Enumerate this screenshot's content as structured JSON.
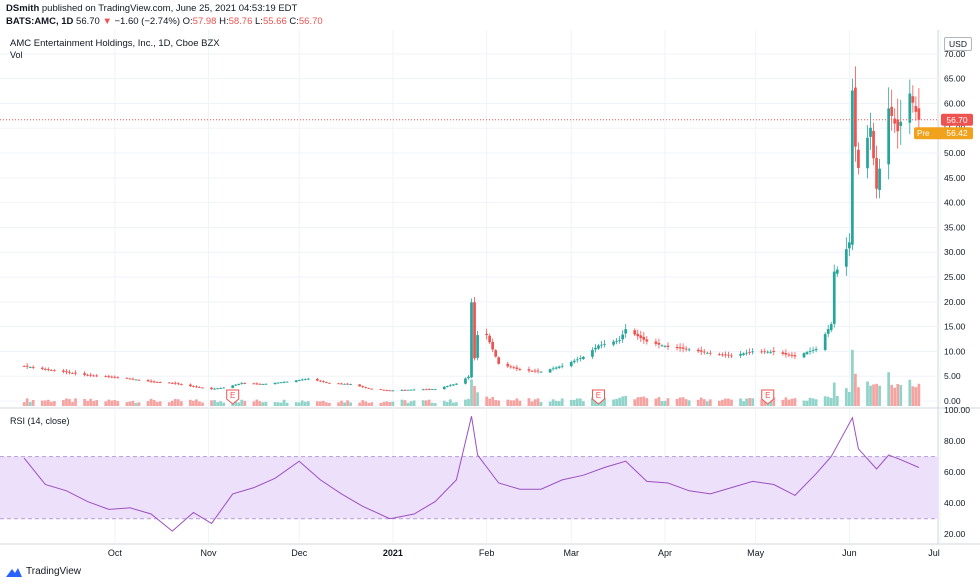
{
  "header": {
    "publisher": "DSmith",
    "published_text": "published on TradingView.com, June 25, 2021 04:53:19 EDT",
    "symbol": "BATS:AMC, 1D",
    "last": "56.70",
    "change": "−1.60 (−2.74%)",
    "o_label": "O:",
    "o": "57.98",
    "h_label": "H:",
    "h": "58.76",
    "l_label": "L:",
    "l": "55.66",
    "c_label": "C:",
    "c": "56.70"
  },
  "legend": {
    "title": "AMC Entertainment Holdings, Inc., 1D, Cboe BZX",
    "vol": "Vol",
    "rsi": "RSI (14, close)"
  },
  "currency": "USD",
  "price_tag": "56.70",
  "pre_tag": "Pre",
  "pre_value": "56.42",
  "footer": {
    "brand": "TradingView"
  },
  "colors": {
    "up": "#26a69a",
    "down": "#ef5350",
    "vol_up": "#8fd3c9",
    "vol_down": "#f5a3a1",
    "rsi_line": "#9c4fc3",
    "rsi_band": "#ede0fb",
    "pre": "#f0a21d"
  },
  "chart_data": [
    {
      "type": "candlestick",
      "y_axis": {
        "ticks": [
          "0.00",
          "5.00",
          "10.00",
          "15.00",
          "20.00",
          "25.00",
          "30.00",
          "35.00",
          "40.00",
          "45.00",
          "50.00",
          "55.00",
          "60.00",
          "65.00",
          "70.00"
        ],
        "ylim": [
          -1,
          74
        ],
        "scale": "linear"
      },
      "x_axis": {
        "ticks": [
          "Oct",
          "Nov",
          "Dec",
          "2021",
          "Feb",
          "Mar",
          "Apr",
          "May",
          "Jun",
          "Jul"
        ]
      },
      "earnings_markers": [
        "2020-11-09",
        "2021-03-10",
        "2021-05-05"
      ],
      "earnings_label": "E",
      "last_close": 56.7,
      "pre_market": 56.42,
      "close_estimates": [
        [
          "2020-09-01",
          7.0
        ],
        [
          "2020-09-08",
          6.4
        ],
        [
          "2020-09-15",
          5.8
        ],
        [
          "2020-09-22",
          5.2
        ],
        [
          "2020-09-29",
          4.9
        ],
        [
          "2020-10-06",
          4.5
        ],
        [
          "2020-10-13",
          3.9
        ],
        [
          "2020-10-20",
          3.6
        ],
        [
          "2020-10-27",
          2.9
        ],
        [
          "2020-11-02",
          2.4
        ],
        [
          "2020-11-06",
          2.7
        ],
        [
          "2020-11-12",
          3.6
        ],
        [
          "2020-11-19",
          3.4
        ],
        [
          "2020-11-27",
          3.9
        ],
        [
          "2020-12-04",
          4.5
        ],
        [
          "2020-12-11",
          3.6
        ],
        [
          "2020-12-18",
          3.4
        ],
        [
          "2020-12-24",
          2.5
        ],
        [
          "2020-12-31",
          2.1
        ],
        [
          "2021-01-08",
          2.3
        ],
        [
          "2021-01-15",
          2.4
        ],
        [
          "2021-01-22",
          3.5
        ],
        [
          "2021-01-26",
          4.9
        ],
        [
          "2021-01-27",
          19.9
        ],
        [
          "2021-01-28",
          8.6
        ],
        [
          "2021-01-29",
          13.3
        ],
        [
          "2021-02-01",
          13.3
        ],
        [
          "2021-02-05",
          7.5
        ],
        [
          "2021-02-12",
          6.3
        ],
        [
          "2021-02-19",
          5.9
        ],
        [
          "2021-02-26",
          7.1
        ],
        [
          "2021-03-05",
          8.9
        ],
        [
          "2021-03-10",
          11.2
        ],
        [
          "2021-03-17",
          12.3
        ],
        [
          "2021-03-19",
          14.5
        ],
        [
          "2021-03-26",
          12.0
        ],
        [
          "2021-04-02",
          10.9
        ],
        [
          "2021-04-09",
          10.4
        ],
        [
          "2021-04-16",
          9.6
        ],
        [
          "2021-04-23",
          9.1
        ],
        [
          "2021-04-30",
          10.0
        ],
        [
          "2021-05-07",
          9.9
        ],
        [
          "2021-05-14",
          9.0
        ],
        [
          "2021-05-21",
          10.5
        ],
        [
          "2021-05-26",
          15.5
        ],
        [
          "2021-05-27",
          26.1
        ],
        [
          "2021-05-28",
          26.5
        ],
        [
          "2021-06-01",
          32.0
        ],
        [
          "2021-06-02",
          62.6
        ],
        [
          "2021-06-03",
          51.3
        ],
        [
          "2021-06-04",
          47.0
        ],
        [
          "2021-06-08",
          55.1
        ],
        [
          "2021-06-10",
          42.8
        ],
        [
          "2021-06-14",
          59.0
        ],
        [
          "2021-06-17",
          54.4
        ],
        [
          "2021-06-21",
          62.0
        ],
        [
          "2021-06-23",
          58.3
        ],
        [
          "2021-06-24",
          56.7
        ]
      ]
    },
    {
      "type": "line",
      "name": "RSI (14, close)",
      "y_axis": {
        "ticks": [
          "20.00",
          "40.00",
          "60.00",
          "80.00",
          "100.00"
        ],
        "ylim": [
          15,
          100
        ]
      },
      "band": [
        30,
        70
      ],
      "values": [
        [
          "2020-09-01",
          69
        ],
        [
          "2020-09-08",
          52
        ],
        [
          "2020-09-15",
          48
        ],
        [
          "2020-09-22",
          41
        ],
        [
          "2020-09-29",
          36
        ],
        [
          "2020-10-06",
          37
        ],
        [
          "2020-10-13",
          33
        ],
        [
          "2020-10-20",
          22
        ],
        [
          "2020-10-27",
          34
        ],
        [
          "2020-11-02",
          27
        ],
        [
          "2020-11-09",
          46
        ],
        [
          "2020-11-16",
          50
        ],
        [
          "2020-11-23",
          56
        ],
        [
          "2020-12-01",
          67
        ],
        [
          "2020-12-08",
          55
        ],
        [
          "2020-12-15",
          46
        ],
        [
          "2020-12-22",
          38
        ],
        [
          "2020-12-31",
          30
        ],
        [
          "2021-01-08",
          33
        ],
        [
          "2021-01-15",
          41
        ],
        [
          "2021-01-22",
          55
        ],
        [
          "2021-01-27",
          96
        ],
        [
          "2021-01-29",
          71
        ],
        [
          "2021-02-05",
          53
        ],
        [
          "2021-02-12",
          49
        ],
        [
          "2021-02-19",
          49
        ],
        [
          "2021-02-26",
          55
        ],
        [
          "2021-03-05",
          58
        ],
        [
          "2021-03-12",
          63
        ],
        [
          "2021-03-19",
          67
        ],
        [
          "2021-03-26",
          54
        ],
        [
          "2021-04-02",
          53
        ],
        [
          "2021-04-09",
          48
        ],
        [
          "2021-04-16",
          46
        ],
        [
          "2021-04-23",
          50
        ],
        [
          "2021-04-30",
          54
        ],
        [
          "2021-05-07",
          52
        ],
        [
          "2021-05-14",
          45
        ],
        [
          "2021-05-21",
          59
        ],
        [
          "2021-05-26",
          70
        ],
        [
          "2021-06-02",
          95
        ],
        [
          "2021-06-04",
          75
        ],
        [
          "2021-06-10",
          62
        ],
        [
          "2021-06-14",
          71
        ],
        [
          "2021-06-18",
          68
        ],
        [
          "2021-06-24",
          63
        ]
      ]
    }
  ]
}
